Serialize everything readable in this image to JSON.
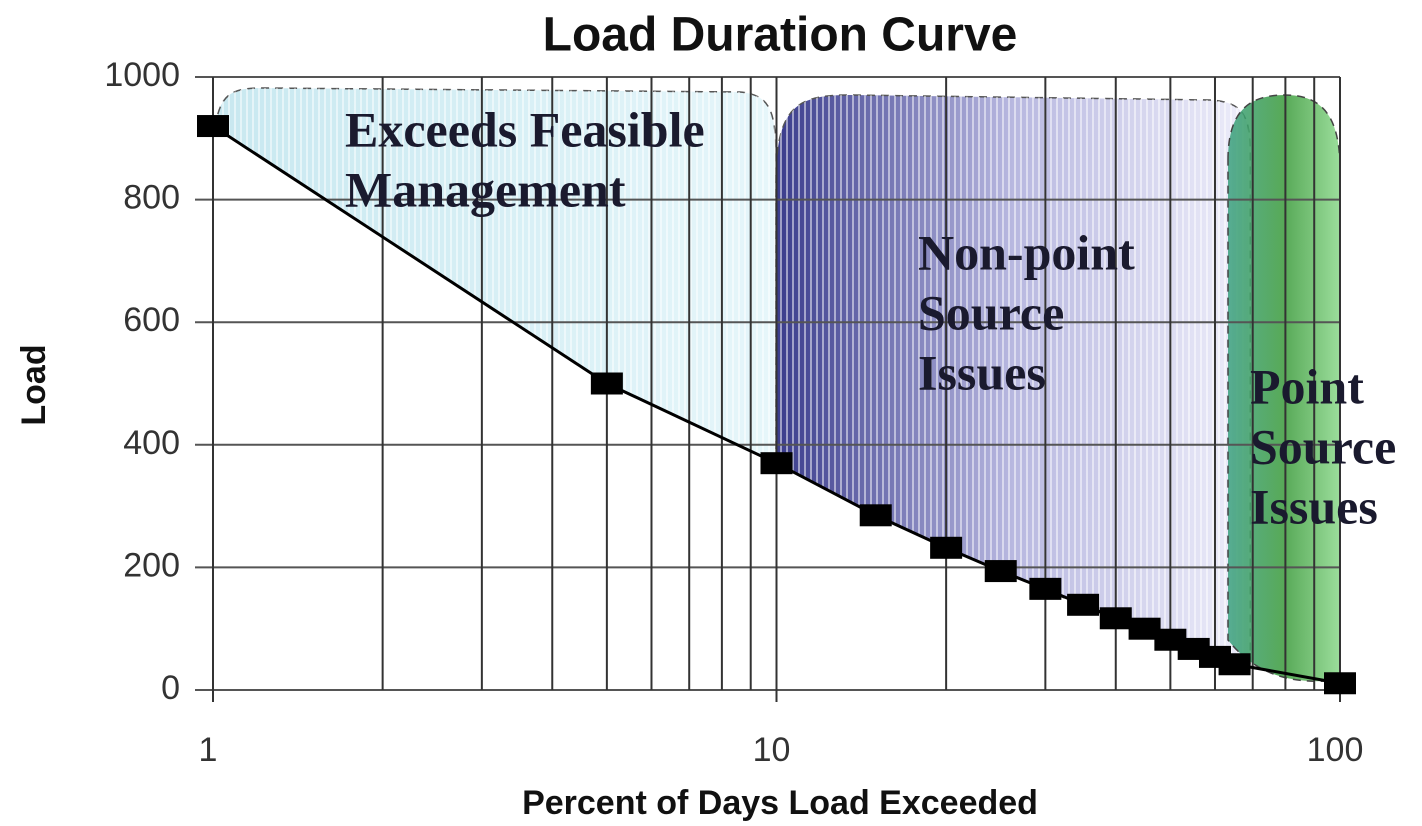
{
  "chart_data": {
    "type": "line",
    "title": "Load Duration Curve",
    "xlabel": "Percent of Days Load Exceeded",
    "ylabel": "Load",
    "x": [
      1,
      5,
      10,
      15,
      20,
      25,
      30,
      35,
      40,
      45,
      50,
      55,
      60,
      65,
      100
    ],
    "series": [
      {
        "name": "Load",
        "color": "#000000",
        "values": [
          920,
          500,
          370,
          285,
          232,
          194,
          165,
          139,
          117,
          100,
          82,
          67,
          54,
          42,
          11
        ]
      }
    ],
    "xlim": [
      1,
      100
    ],
    "xticks": [
      1,
      10,
      100
    ],
    "xscale": "log",
    "minor_grid": true,
    "ylim": [
      0,
      1000
    ],
    "yticks": [
      0,
      200,
      400,
      600,
      800,
      1000
    ],
    "grid": true,
    "annotations": [
      {
        "lines": [
          "Exceeds Feasible",
          "Management"
        ]
      },
      {
        "lines": [
          "Non-point",
          "Source",
          "Issues"
        ]
      },
      {
        "lines": [
          "Point",
          "Source",
          "Issues"
        ]
      }
    ]
  }
}
